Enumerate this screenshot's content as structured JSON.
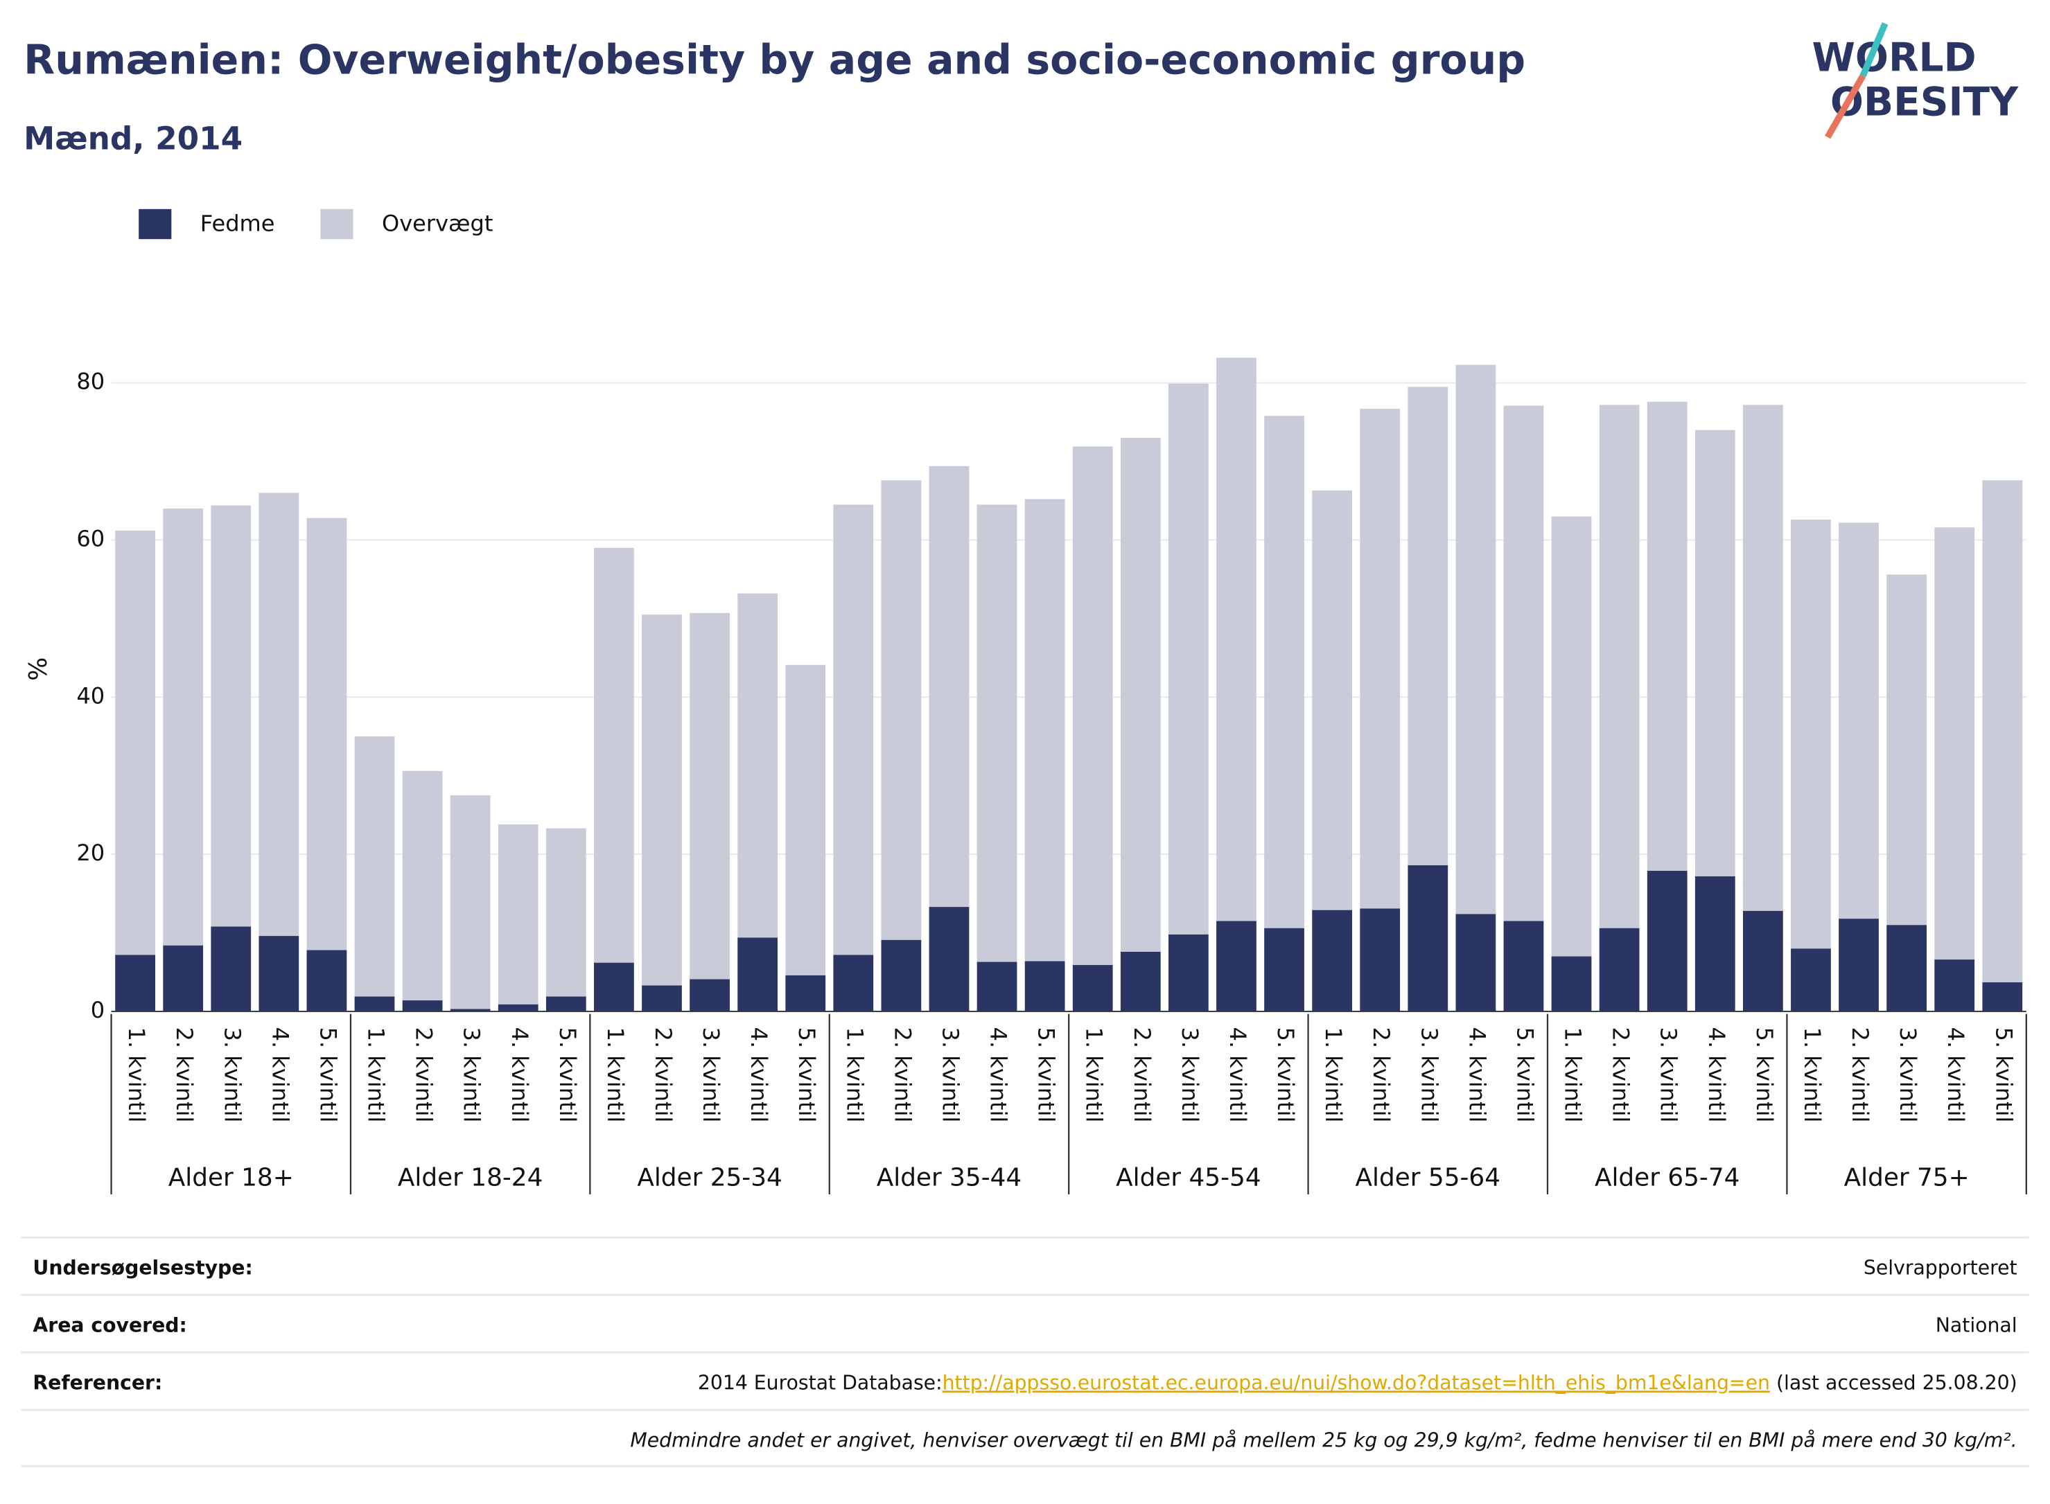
{
  "chart_data": {
    "type": "stacked_bar",
    "title": "Rumænien: Overweight/obesity by age and socio-economic group",
    "subtitle": "Mænd, 2014",
    "logo": [
      "WORLD",
      "OBESITY"
    ],
    "y_label": "%",
    "categories": [
      "1. kvintil",
      "2. kvintil",
      "3. kvintil",
      "4. kvintil",
      "5. kvintil",
      "1. kvintil",
      "2. kvintil",
      "3. kvintil",
      "4. kvintil",
      "5. kvintil",
      "1. kvintil",
      "2. kvintil",
      "3. kvintil",
      "4. kvintil",
      "5. kvintil",
      "1. kvintil",
      "2. kvintil",
      "3. kvintil",
      "4. kvintil",
      "5. kvintil",
      "1. kvintil",
      "2. kvintil",
      "3. kvintil",
      "4. kvintil",
      "5. kvintil",
      "1. kvintil",
      "2. kvintil",
      "3. kvintil",
      "4. kvintil",
      "5. kvintil",
      "1. kvintil",
      "2. kvintil",
      "3. kvintil",
      "4. kvintil",
      "5. kvintil",
      "1. kvintil",
      "2. kvintil",
      "3. kvintil",
      "4. kvintil",
      "5. kvintil"
    ],
    "groups": [
      "Alder 18+",
      "Alder 18-24",
      "Alder 25-34",
      "Alder 35-44",
      "Alder 45-54",
      "Alder 55-64",
      "Alder 65-74",
      "Alder 75+"
    ],
    "series": [
      {
        "name": "Fedme",
        "color": "#2a3563",
        "values": [
          7.2,
          8.4,
          10.8,
          9.6,
          7.8,
          1.9,
          1.4,
          0.3,
          0.9,
          1.9,
          6.2,
          3.3,
          4.1,
          9.4,
          4.6,
          7.2,
          9.1,
          13.3,
          6.3,
          6.4,
          5.9,
          7.6,
          9.8,
          11.5,
          10.6,
          12.9,
          13.1,
          18.6,
          12.4,
          11.5,
          7.0,
          10.6,
          17.9,
          17.2,
          12.8,
          8.0,
          11.8,
          11.0,
          6.6,
          3.7
        ]
      },
      {
        "name": "Overvægt",
        "color": "#cacbd9",
        "values": [
          54.0,
          55.6,
          53.6,
          56.4,
          55.0,
          33.1,
          29.2,
          27.2,
          22.9,
          21.4,
          52.8,
          47.2,
          46.6,
          43.8,
          39.5,
          57.3,
          58.5,
          56.1,
          58.2,
          58.8,
          66.0,
          65.4,
          70.1,
          71.7,
          65.2,
          53.4,
          63.6,
          60.9,
          69.9,
          65.6,
          56.0,
          66.6,
          59.7,
          56.8,
          64.4,
          54.6,
          50.4,
          44.6,
          55.0,
          63.9
        ]
      }
    ],
    "ylim": [
      0,
      90
    ],
    "yticks": [
      0,
      20,
      40,
      60,
      80
    ],
    "grid": true,
    "legend": "top-left"
  },
  "table": {
    "rows": [
      [
        "Undersøgelsestype:",
        "Selvrapporteret"
      ],
      [
        "Area covered:",
        "National"
      ],
      [
        "Referencer:",
        "2014 Eurostat Database:",
        "http://appsso.eurostat.ec.europa.eu/nui/show.do?dataset=hlth_ehis_bm1e&lang=en",
        " (last accessed 25.08.20)"
      ]
    ],
    "note": "Medmindre andet er angivet, henviser overvægt til en BMI på mellem 25 kg og 29,9 kg/m², fedme henviser til en BMI på mere end 30 kg/m²."
  }
}
